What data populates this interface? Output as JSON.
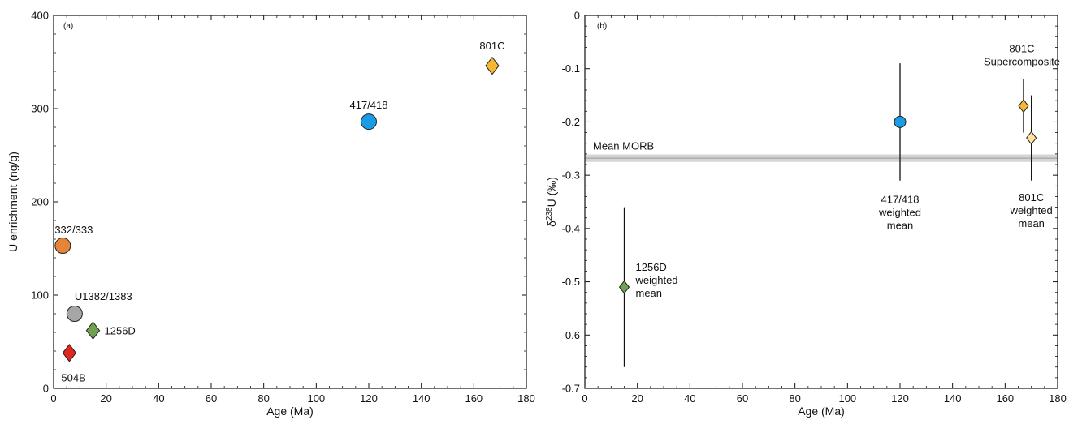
{
  "chart_data": [
    {
      "type": "scatter",
      "panel_label": "(a)",
      "xlabel": "Age (Ma)",
      "ylabel": "U enrichment (ng/g)",
      "xlim": [
        0,
        180
      ],
      "ylim": [
        0,
        400
      ],
      "xticks": [
        0,
        20,
        40,
        60,
        80,
        100,
        120,
        140,
        160,
        180
      ],
      "xtick_labels": [
        "0",
        "20",
        "40",
        "60",
        "80",
        "100",
        "120",
        "140",
        "160",
        "180"
      ],
      "yticks": [
        0,
        100,
        200,
        300,
        400
      ],
      "ytick_labels": [
        "0",
        "100",
        "200",
        "300",
        "400"
      ],
      "grid": false,
      "points": [
        {
          "label": "332/333",
          "x": 3.5,
          "y": 153,
          "marker": "circle",
          "color": "#E8833A"
        },
        {
          "label": "U1382/1383",
          "x": 8,
          "y": 80,
          "marker": "circle",
          "color": "#A6A6A6"
        },
        {
          "label": "1256D",
          "x": 15,
          "y": 62,
          "marker": "diamond",
          "color": "#70A14F"
        },
        {
          "label": "504B",
          "x": 6,
          "y": 38,
          "marker": "diamond",
          "color": "#E3261B"
        },
        {
          "label": "417/418",
          "x": 120,
          "y": 286,
          "marker": "circle",
          "color": "#1A9BE6"
        },
        {
          "label": "801C",
          "x": 167,
          "y": 346,
          "marker": "diamond",
          "color": "#F7B733"
        }
      ]
    },
    {
      "type": "scatter",
      "panel_label": "(b)",
      "xlabel": "Age (Ma)",
      "ylabel_prefix": "δ",
      "ylabel_sup": "238",
      "ylabel_rest": "U (‰)",
      "xlim": [
        0,
        180
      ],
      "ylim": [
        -0.7,
        0
      ],
      "xticks": [
        0,
        20,
        40,
        60,
        80,
        100,
        120,
        140,
        160,
        180
      ],
      "xtick_labels": [
        "0",
        "20",
        "40",
        "60",
        "80",
        "100",
        "120",
        "140",
        "160",
        "180"
      ],
      "yticks": [
        0,
        -0.1,
        -0.2,
        -0.3,
        -0.4,
        -0.5,
        -0.6,
        -0.7
      ],
      "ytick_labels": [
        "0",
        "-0.1",
        "-0.2",
        "-0.3",
        "-0.4",
        "-0.5",
        "-0.6",
        "-0.7"
      ],
      "grid": false,
      "reference_band": {
        "label": "Mean MORB",
        "center": -0.268,
        "low": -0.275,
        "high": -0.261,
        "color": "#D4D4D4"
      },
      "points": [
        {
          "label_lines": [
            "1256D",
            "weighted",
            "mean"
          ],
          "x": 15,
          "y": -0.51,
          "err_low": -0.66,
          "err_high": -0.36,
          "marker": "diamond",
          "color": "#70A14F"
        },
        {
          "label_lines": [
            "417/418",
            "weighted",
            "mean"
          ],
          "x": 120,
          "y": -0.2,
          "err_low": -0.31,
          "err_high": -0.09,
          "marker": "circle",
          "color": "#1A9BE6"
        },
        {
          "label_lines": [
            "801C",
            "Supercomposite"
          ],
          "x": 167,
          "y": -0.17,
          "err_low": -0.22,
          "err_high": -0.12,
          "marker": "diamond",
          "color": "#F7B733"
        },
        {
          "label_lines": [
            "801C",
            "weighted",
            "mean"
          ],
          "x": 170,
          "y": -0.23,
          "err_low": -0.31,
          "err_high": -0.15,
          "marker": "diamond",
          "color": "#FFE49A"
        }
      ]
    }
  ]
}
